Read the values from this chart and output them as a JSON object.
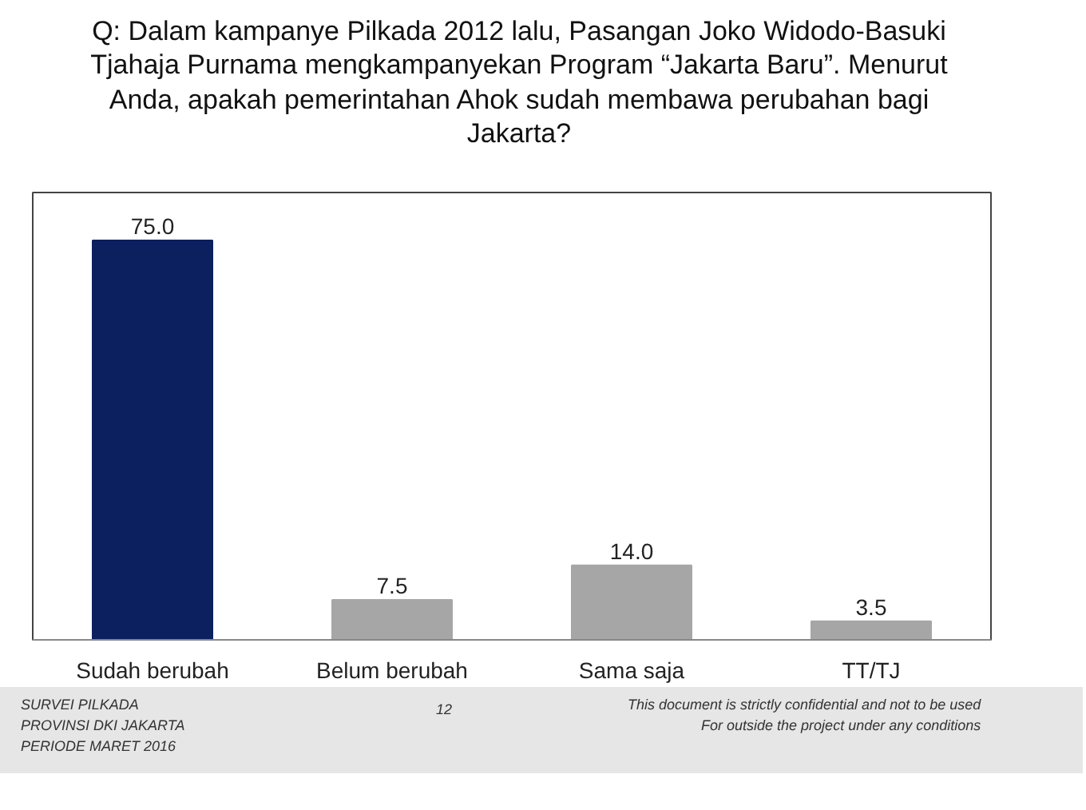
{
  "chart_data": {
    "type": "bar",
    "title": "Q: Dalam kampanye Pilkada 2012 lalu, Pasangan Joko Widodo-Basuki Tjahaja Purnama mengkampanyekan Program “Jakarta Baru”. Menurut Anda, apakah pemerintahan Ahok sudah membawa perubahan bagi Jakarta?",
    "categories": [
      "Sudah berubah",
      "Belum berubah",
      "Sama saja",
      "TT/TJ"
    ],
    "values": [
      75.0,
      7.5,
      14.0,
      3.5
    ],
    "colors": [
      "#0c1f5e",
      "#a6a6a6",
      "#a6a6a6",
      "#a6a6a6"
    ],
    "value_labels": [
      "75.0",
      "7.5",
      "14.0",
      "3.5"
    ],
    "grid": false,
    "annotations": [
      "SURVEI PILKADA\nPROVINSI DKI JAKARTA\nPERIODE MARET 2016",
      "12",
      "This document is strictly confidential and not to be used\nFor outside the project under any conditions"
    ]
  }
}
